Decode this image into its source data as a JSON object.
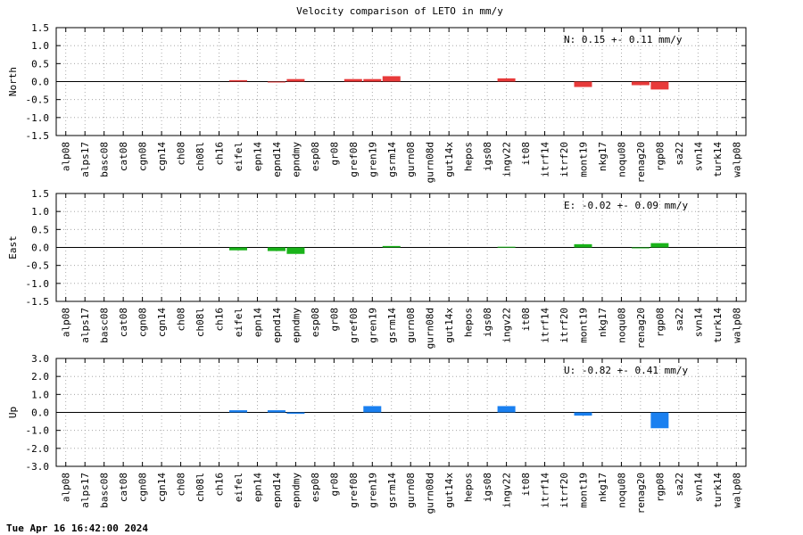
{
  "chart_data": {
    "type": "bar",
    "title": "Velocity comparison of LETO in mm/y",
    "categories": [
      "alp08",
      "alps17",
      "basc08",
      "cat08",
      "cgn08",
      "cgn14",
      "ch08",
      "ch08l",
      "ch16",
      "eifel",
      "epn14",
      "epnd14",
      "epndmy",
      "esp08",
      "gr08",
      "gref08",
      "gren19",
      "gsrm14",
      "gurn08",
      "gurn08d",
      "gut14x",
      "hepos",
      "igs08",
      "ingv22",
      "it08",
      "itrf14",
      "itrf20",
      "mont19",
      "nkg17",
      "noqu08",
      "renag20",
      "rgp08",
      "sa22",
      "svn14",
      "turk14",
      "walp08"
    ],
    "panels": [
      {
        "ylabel": "North",
        "ylim": [
          -1.5,
          1.5
        ],
        "yticks": [
          -1.5,
          -1.0,
          -0.5,
          0.0,
          0.5,
          1.0,
          1.5
        ],
        "ytick_labels": [
          "-1.5",
          "-1.0",
          "-0.5",
          "0.0",
          "0.5",
          "1.0",
          "1.5"
        ],
        "annotation": "N:   0.15 +-  0.11 mm/y",
        "color": "#e83a3a",
        "values": [
          0,
          0,
          0,
          0,
          0,
          0,
          0,
          0,
          0,
          0.04,
          0,
          -0.02,
          0.07,
          0,
          0,
          0.07,
          0.07,
          0.15,
          0,
          0,
          0,
          0,
          0,
          0.09,
          0,
          0,
          0,
          -0.15,
          0,
          0,
          -0.1,
          -0.22,
          0,
          0,
          0,
          0
        ]
      },
      {
        "ylabel": "East",
        "ylim": [
          -1.5,
          1.5
        ],
        "yticks": [
          -1.5,
          -1.0,
          -0.5,
          0.0,
          0.5,
          1.0,
          1.5
        ],
        "ytick_labels": [
          "-1.5",
          "-1.0",
          "-0.5",
          "0.0",
          "0.5",
          "1.0",
          "1.5"
        ],
        "annotation": "E:  -0.02 +-  0.09 mm/y",
        "color": "#1ab31a",
        "values": [
          0,
          0,
          0,
          0,
          0,
          0,
          0,
          0,
          0,
          -0.08,
          0,
          -0.1,
          -0.18,
          0,
          0,
          0,
          0,
          0.04,
          0,
          0,
          0,
          0,
          0,
          0.02,
          0,
          0,
          0,
          0.09,
          0,
          0,
          -0.02,
          0.12,
          0,
          0,
          0,
          0
        ]
      },
      {
        "ylabel": "Up",
        "ylim": [
          -3.0,
          3.0
        ],
        "yticks": [
          -3.0,
          -2.0,
          -1.0,
          0.0,
          1.0,
          2.0,
          3.0
        ],
        "ytick_labels": [
          "-3.0",
          "-2.0",
          "-1.0",
          "0.0",
          "1.0",
          "2.0",
          "3.0"
        ],
        "annotation": "U:  -0.82 +-  0.41 mm/y",
        "color": "#1a80f0",
        "values": [
          0,
          0,
          0,
          0,
          0,
          0,
          0,
          0,
          0,
          0.12,
          0,
          0.12,
          -0.08,
          0,
          0,
          0,
          0.35,
          0,
          0,
          0,
          0,
          0,
          0,
          0.35,
          0,
          0,
          0,
          -0.18,
          0,
          0,
          0,
          -0.88,
          0,
          0,
          0,
          0
        ]
      }
    ],
    "grid": true,
    "grid_style": "dotted"
  },
  "footer": {
    "timestamp": "Tue Apr 16 16:42:00 2024"
  }
}
